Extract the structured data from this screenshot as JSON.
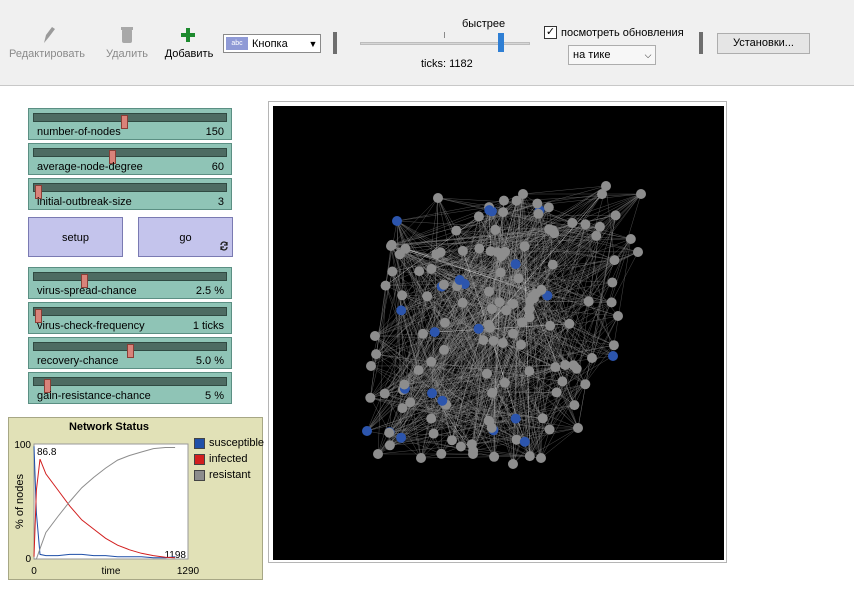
{
  "toolbar": {
    "edit_label": "Редактировать",
    "delete_label": "Удалить",
    "add_label": "Добавить",
    "widget_type": "Кнопка",
    "speed_label": "быстрее",
    "speed_value": 0.82,
    "ticks_label": "ticks: 1182",
    "update_check_label": "посмотреть обновления",
    "update_checked": true,
    "update_mode": "на тике",
    "settings_label": "Установки..."
  },
  "sliders": [
    {
      "name": "number-of-nodes",
      "value": "150",
      "fraction": 0.47
    },
    {
      "name": "average-node-degree",
      "value": "60",
      "fraction": 0.4
    },
    {
      "name": "initial-outbreak-size",
      "value": "3",
      "fraction": 0.0
    },
    {
      "name": "virus-spread-chance",
      "value": "2.5 %",
      "fraction": 0.25
    },
    {
      "name": "virus-check-frequency",
      "value": "1 ticks",
      "fraction": 0.0
    },
    {
      "name": "recovery-chance",
      "value": "5.0 %",
      "fraction": 0.5
    },
    {
      "name": "gain-resistance-chance",
      "value": "5 %",
      "fraction": 0.05
    }
  ],
  "buttons": {
    "setup": "setup",
    "go": "go",
    "go_forever_icon": "forever-arrows-icon"
  },
  "chart_data": {
    "type": "line",
    "title": "Network Status",
    "xlabel": "time",
    "ylabel": "% of nodes",
    "xlim": [
      0,
      1290
    ],
    "ylim": [
      0,
      100
    ],
    "x_tick_labels": [
      "0",
      "1290"
    ],
    "y_tick_labels": [
      "0",
      "100"
    ],
    "corner_labels": {
      "y_max_reading": "86.8",
      "x_max_reading": "1198"
    },
    "legend_position": "right",
    "series": [
      {
        "name": "susceptible",
        "color": "#1f4fa8",
        "x": [
          0,
          20,
          50,
          100,
          200,
          300,
          400,
          500,
          600,
          700,
          800,
          900,
          1000,
          1100,
          1182
        ],
        "values": [
          98,
          40,
          4,
          3,
          3,
          4,
          4,
          3,
          3,
          2,
          2,
          2,
          1,
          1,
          2
        ]
      },
      {
        "name": "infected",
        "color": "#d21f1f",
        "x": [
          0,
          20,
          50,
          100,
          200,
          300,
          400,
          500,
          600,
          700,
          800,
          900,
          1000,
          1100,
          1182
        ],
        "values": [
          2,
          60,
          86.8,
          74,
          60,
          46,
          34,
          26,
          18,
          12,
          8,
          5,
          3,
          1.5,
          1
        ]
      },
      {
        "name": "resistant",
        "color": "#8d8d8d",
        "x": [
          0,
          20,
          50,
          100,
          200,
          300,
          400,
          500,
          600,
          700,
          800,
          900,
          1000,
          1100,
          1182
        ],
        "values": [
          0,
          0,
          9,
          23,
          37,
          50,
          62,
          71,
          79,
          86,
          90,
          93,
          96,
          97,
          97
        ]
      }
    ]
  },
  "colors": {
    "node_susceptible": "#2c55ad",
    "node_resistant": "#8d8d8d",
    "link": "#8d8d8d",
    "link_infected": "#ffffff",
    "view_background": "#000000",
    "slider_background": "#8fc4b6",
    "button_background": "#c4c4ec",
    "plot_background": "#e1e1b7"
  }
}
